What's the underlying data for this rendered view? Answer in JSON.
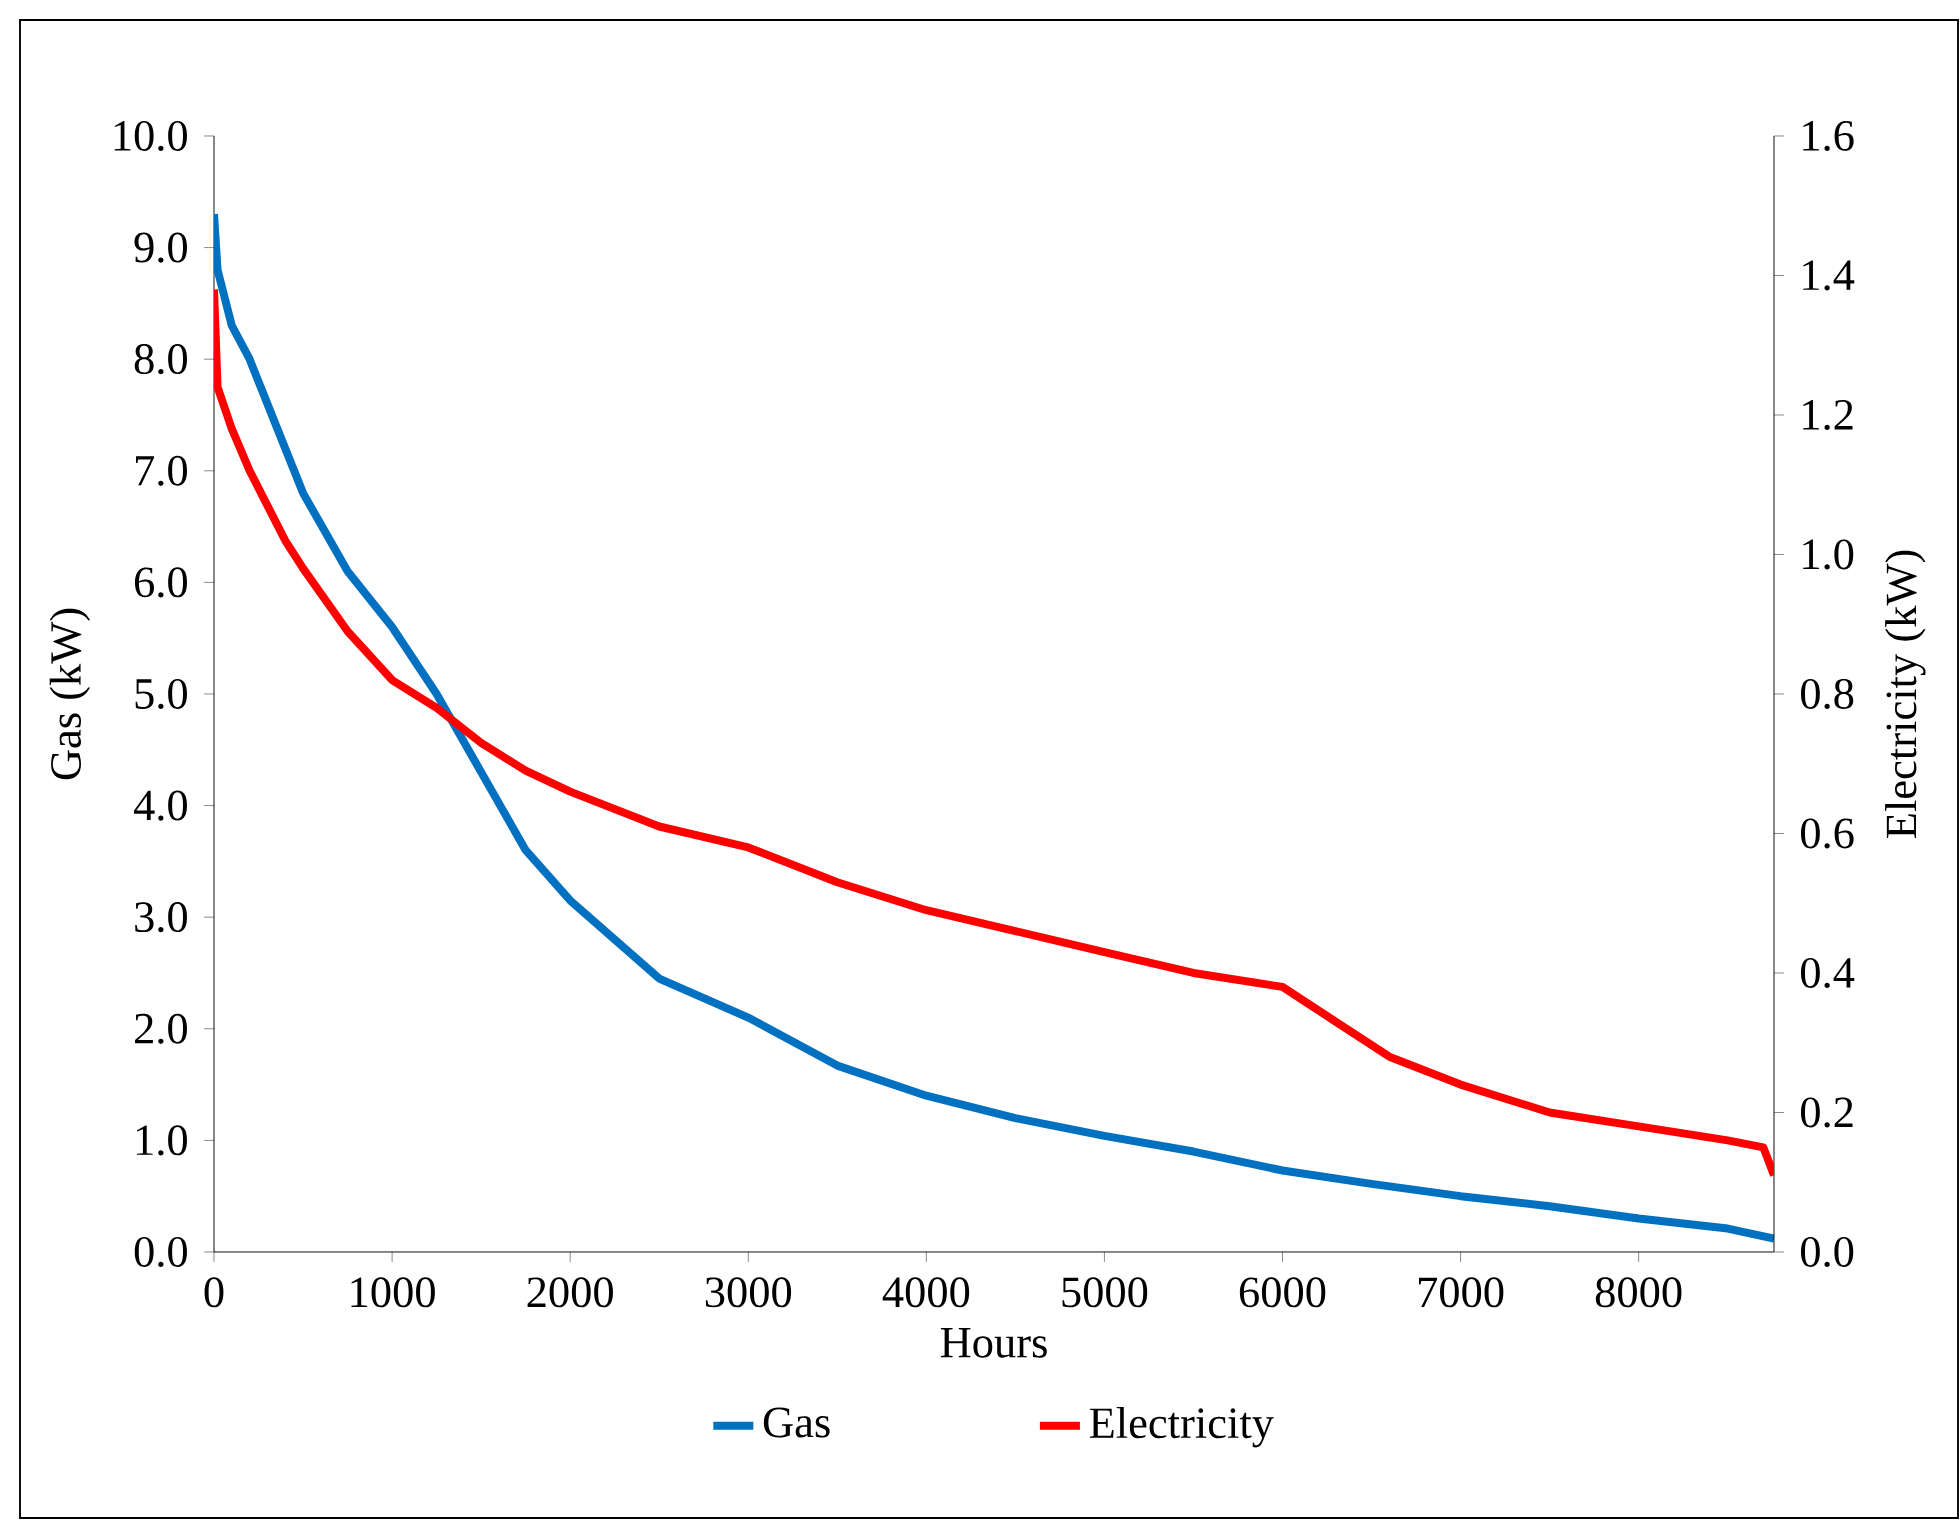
{
  "chart_data": {
    "type": "line",
    "xlabel": "Hours",
    "ylabel": "Gas (kW)",
    "y2label": "Electricity (kW)",
    "xlim": [
      0,
      8760
    ],
    "xticks": [
      0,
      1000,
      2000,
      3000,
      4000,
      5000,
      6000,
      7000,
      8000
    ],
    "ylim": [
      0,
      10
    ],
    "yticks": [
      {
        "value": 0,
        "label": "0.0"
      },
      {
        "value": 1,
        "label": "1.0"
      },
      {
        "value": 2,
        "label": "2.0"
      },
      {
        "value": 3,
        "label": "3.0"
      },
      {
        "value": 4,
        "label": "4.0"
      },
      {
        "value": 5,
        "label": "5.0"
      },
      {
        "value": 6,
        "label": "6.0"
      },
      {
        "value": 7,
        "label": "7.0"
      },
      {
        "value": 8,
        "label": "8.0"
      },
      {
        "value": 9,
        "label": "9.0"
      },
      {
        "value": 10,
        "label": "10.0"
      }
    ],
    "y2lim": [
      0,
      1.6
    ],
    "y2ticks": [
      {
        "value": 0,
        "label": "0.0"
      },
      {
        "value": 0.2,
        "label": "0.2"
      },
      {
        "value": 0.4,
        "label": "0.4"
      },
      {
        "value": 0.6,
        "label": "0.6"
      },
      {
        "value": 0.8,
        "label": "0.8"
      },
      {
        "value": 1.0,
        "label": "1.0"
      },
      {
        "value": 1.2,
        "label": "1.2"
      },
      {
        "value": 1.4,
        "label": "1.4"
      },
      {
        "value": 1.6,
        "label": "1.6"
      }
    ],
    "legend": "bottom",
    "grid": false,
    "marker": "none",
    "line_style": "solid",
    "series": [
      {
        "name": "Gas",
        "color": "#0070c0",
        "x": [
          0,
          20,
          100,
          200,
          400,
          500,
          750,
          1000,
          1250,
          1500,
          1750,
          2000,
          2500,
          3000,
          3500,
          4000,
          4500,
          5000,
          5500,
          6000,
          6500,
          7000,
          7500,
          8000,
          8500,
          8760
        ],
        "values": [
          9.3,
          8.8,
          8.3,
          8.0,
          7.2,
          6.8,
          6.1,
          5.6,
          5.0,
          4.3,
          3.6,
          3.15,
          2.45,
          2.1,
          1.67,
          1.4,
          1.2,
          1.04,
          0.9,
          0.73,
          0.61,
          0.5,
          0.41,
          0.3,
          0.21,
          0.12
        ]
      },
      {
        "name": "Electricity",
        "color": "#ff0000",
        "axis": "y2",
        "x": [
          0,
          20,
          100,
          200,
          400,
          500,
          750,
          1000,
          1250,
          1500,
          1750,
          2000,
          2500,
          3000,
          3500,
          4000,
          4500,
          5000,
          5500,
          6000,
          6300,
          6600,
          7000,
          7500,
          8000,
          8500,
          8700,
          8760
        ],
        "values": [
          1.38,
          1.24,
          1.18,
          1.12,
          1.02,
          0.98,
          0.89,
          0.82,
          0.78,
          0.73,
          0.69,
          0.66,
          0.61,
          0.58,
          0.53,
          0.49,
          0.46,
          0.43,
          0.4,
          0.38,
          0.33,
          0.28,
          0.24,
          0.2,
          0.18,
          0.16,
          0.15,
          0.11
        ]
      }
    ]
  }
}
